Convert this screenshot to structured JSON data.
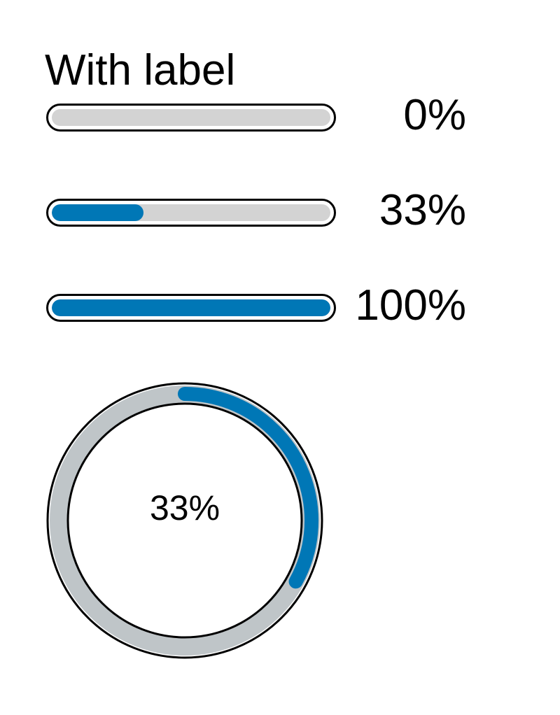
{
  "section": {
    "title": "With label"
  },
  "colors": {
    "accent": "#0077b6",
    "track": "#d3d3d3",
    "ring_track": "#bfc5c8",
    "border": "#000000"
  },
  "bars": [
    {
      "value": 0,
      "label": "0%"
    },
    {
      "value": 33,
      "label": "33%"
    },
    {
      "value": 100,
      "label": "100%"
    }
  ],
  "circle": {
    "value": 33,
    "label": "33%"
  }
}
